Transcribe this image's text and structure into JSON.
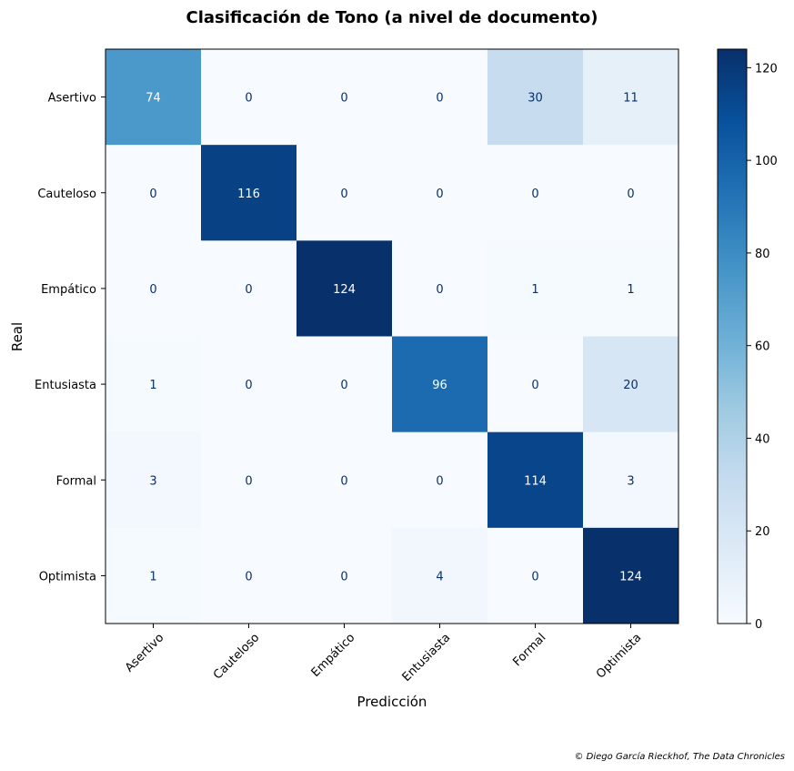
{
  "chart_data": {
    "type": "heatmap",
    "title": "Clasificación de Tono (a nivel de documento)",
    "xlabel": "Predicción",
    "ylabel": "Real",
    "x_categories": [
      "Asertivo",
      "Cauteloso",
      "Empático",
      "Entusiasta",
      "Formal",
      "Optimista"
    ],
    "y_categories": [
      "Asertivo",
      "Cauteloso",
      "Empático",
      "Entusiasta",
      "Formal",
      "Optimista"
    ],
    "matrix": [
      [
        74,
        0,
        0,
        0,
        30,
        11
      ],
      [
        0,
        116,
        0,
        0,
        0,
        0
      ],
      [
        0,
        0,
        124,
        0,
        1,
        1
      ],
      [
        1,
        0,
        0,
        96,
        0,
        20
      ],
      [
        3,
        0,
        0,
        0,
        114,
        3
      ],
      [
        1,
        0,
        0,
        4,
        0,
        124
      ]
    ],
    "colormap": "Blues",
    "colorbar": {
      "range": [
        0,
        124
      ],
      "ticks": [
        0,
        20,
        40,
        60,
        80,
        100,
        120
      ]
    },
    "grid": false
  },
  "footer": {
    "credit": "© Diego García Rieckhof, The Data Chronicles"
  }
}
